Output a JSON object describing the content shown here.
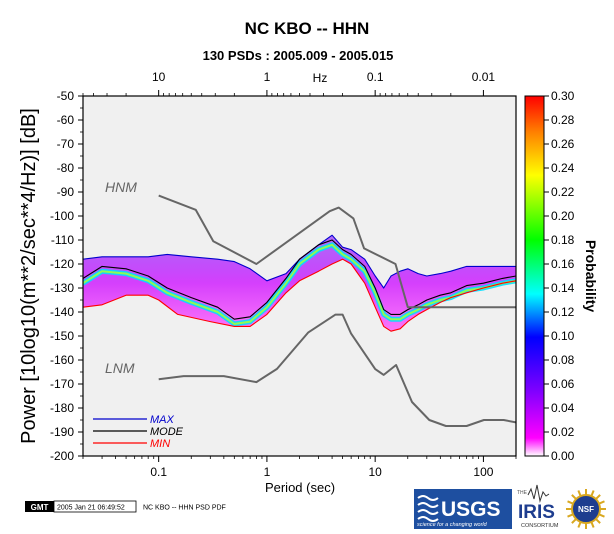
{
  "chart_data": {
    "type": "heatmap",
    "title": "NC KBO -- HHN",
    "subtitle": "130 PSDs : 2005.009 - 2005.015",
    "xlabel": "Period (sec)",
    "ylabel": "Power [10log10(m**2/sec**4/Hz)] [dB]",
    "top_axis_unit": "Hz",
    "x_scale": "log",
    "xlim": [
      0.02,
      200
    ],
    "ylim": [
      -200,
      -50
    ],
    "x_ticks": [
      0.1,
      1,
      10,
      100
    ],
    "x_tick_labels": [
      "0.1",
      "1",
      "10",
      "100"
    ],
    "top_ticks": [
      10,
      1,
      0.1,
      0.01
    ],
    "top_tick_labels": [
      "10",
      "1",
      "0.1",
      "0.01"
    ],
    "y_ticks": [
      -50,
      -60,
      -70,
      -80,
      -90,
      -100,
      -110,
      -120,
      -130,
      -140,
      -150,
      -160,
      -170,
      -180,
      -190,
      -200
    ],
    "y_tick_labels": [
      "-50",
      "-60",
      "-70",
      "-80",
      "-90",
      "-100",
      "-110",
      "-120",
      "-130",
      "-140",
      "-150",
      "-160",
      "-170",
      "-180",
      "-190",
      "-200"
    ],
    "colorbar": {
      "label": "Probability",
      "range": [
        0,
        0.3
      ],
      "ticks": [
        0,
        0.02,
        0.04,
        0.06,
        0.08,
        0.1,
        0.12,
        0.14,
        0.16,
        0.18,
        0.2,
        0.22,
        0.24,
        0.26,
        0.28,
        0.3
      ],
      "tick_labels": [
        "0.00",
        "0.02",
        "0.04",
        "0.06",
        "0.08",
        "0.10",
        "0.12",
        "0.14",
        "0.16",
        "0.18",
        "0.20",
        "0.22",
        "0.24",
        "0.26",
        "0.28",
        "0.30"
      ],
      "colors": [
        "#ffffff",
        "#ff00ff",
        "#8000ff",
        "#0000ff",
        "#00ffff",
        "#00ff00",
        "#ffff00",
        "#ff8000",
        "#ff0000"
      ]
    },
    "annotations": [
      "HNM",
      "LNM"
    ],
    "legend": {
      "placement": "bottom-left",
      "entries": [
        {
          "name": "MAX",
          "color": "#0000cc"
        },
        {
          "name": "MODE",
          "color": "#000000"
        },
        {
          "name": "MIN",
          "color": "#ff0000"
        }
      ]
    },
    "series": [
      {
        "name": "MAX",
        "color": "#0000cc",
        "x": [
          0.02,
          0.03,
          0.05,
          0.08,
          0.12,
          0.2,
          0.35,
          0.5,
          0.7,
          1,
          1.5,
          2,
          3,
          4,
          5,
          6,
          8,
          10,
          12,
          14,
          17,
          20,
          25,
          30,
          40,
          50,
          70,
          100,
          150,
          200
        ],
        "y": [
          -118,
          -117,
          -117,
          -117,
          -116,
          -117,
          -118,
          -119,
          -122,
          -127,
          -124,
          -118,
          -112,
          -108,
          -113,
          -114,
          -118,
          -125,
          -130,
          -125,
          -123,
          -122,
          -124,
          -125,
          -124,
          -123,
          -121,
          -121,
          -121,
          -121
        ]
      },
      {
        "name": "MODE",
        "color": "#000000",
        "x": [
          0.02,
          0.03,
          0.05,
          0.08,
          0.12,
          0.2,
          0.35,
          0.5,
          0.7,
          1,
          1.5,
          2,
          3,
          4,
          5,
          6,
          8,
          10,
          12,
          14,
          17,
          20,
          25,
          30,
          40,
          50,
          70,
          100,
          150,
          200
        ],
        "y": [
          -126,
          -121,
          -122,
          -125,
          -130,
          -134,
          -138,
          -143,
          -142,
          -136,
          -126,
          -118,
          -112,
          -110,
          -114,
          -116,
          -121,
          -130,
          -139,
          -141,
          -141,
          -139,
          -137,
          -135,
          -133,
          -132,
          -129,
          -128,
          -126,
          -125
        ]
      },
      {
        "name": "MIN",
        "color": "#ff0000",
        "x": [
          0.02,
          0.03,
          0.05,
          0.08,
          0.1,
          0.15,
          0.3,
          0.5,
          0.7,
          1,
          1.5,
          2,
          3,
          4,
          5,
          6,
          8,
          10,
          12,
          14,
          17,
          20,
          25,
          30,
          40,
          50,
          70,
          100,
          150,
          200
        ],
        "y": [
          -138,
          -137,
          -133,
          -133,
          -135,
          -141,
          -144,
          -146,
          -146,
          -141,
          -132,
          -127,
          -123,
          -120,
          -118,
          -120,
          -128,
          -138,
          -146,
          -148,
          -147,
          -144,
          -141,
          -139,
          -136,
          -134,
          -132,
          -130,
          -128,
          -127
        ]
      },
      {
        "name": "HNM",
        "color": "#666666",
        "x": [
          0.1,
          0.22,
          0.32,
          0.8,
          3.8,
          4.6,
          6.3,
          7.9,
          15.4,
          20,
          200
        ],
        "y": [
          -91.5,
          -97.4,
          -110.5,
          -120,
          -98,
          -96.5,
          -101,
          -113.5,
          -120,
          -138,
          -138
        ]
      },
      {
        "name": "LNM",
        "color": "#666666",
        "x": [
          0.1,
          0.17,
          0.4,
          0.8,
          1.24,
          2.4,
          4.3,
          5,
          6,
          10,
          12,
          15.6,
          21.9,
          31.6,
          45,
          70,
          101,
          154,
          200
        ],
        "y": [
          -168,
          -166.7,
          -166.7,
          -169.2,
          -163.7,
          -148.6,
          -141.1,
          -141.1,
          -149,
          -163.8,
          -166.2,
          -162.1,
          -177.5,
          -185,
          -187.5,
          -187.5,
          -185,
          -185,
          -186
        ]
      }
    ]
  },
  "footer": {
    "gmt_badge": "GMT",
    "timestamp": "2005 Jan 21 06:49:52",
    "caption": "NC KBO -- HHN PSD PDF"
  },
  "logos": {
    "usgs_text": "USGS",
    "usgs_tagline": "science for a changing world",
    "iris_prefix": "THE",
    "iris_text": "IRIS",
    "iris_caption": "CONSORTIUM",
    "nsf_text": "NSF"
  },
  "colors": {
    "heat_background": "#f0f0f0",
    "reference_model_gray": "#666666",
    "usgs_blue": "#1e4fa0",
    "nsf_gold": "#d9a820"
  }
}
